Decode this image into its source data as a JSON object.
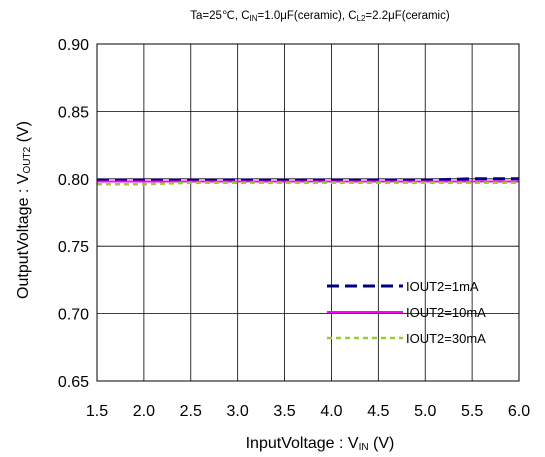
{
  "chart_data": {
    "type": "line",
    "title_parts": [
      {
        "t": "Ta=25℃, C"
      },
      {
        "t": "IN",
        "sub": true
      },
      {
        "t": "=1.0μF(ceramic), C"
      },
      {
        "t": "L2",
        "sub": true
      },
      {
        "t": "=2.2μF(ceramic)"
      }
    ],
    "xlabel_parts": [
      {
        "t": "InputVoltage : V"
      },
      {
        "t": "IN",
        "sub": true
      },
      {
        "t": " (V)"
      }
    ],
    "ylabel_parts": [
      {
        "t": "OutputVoltage : V"
      },
      {
        "t": "OUT2",
        "sub": true
      },
      {
        "t": " (V)"
      }
    ],
    "xlim": [
      1.5,
      6.0
    ],
    "ylim": [
      0.65,
      0.9
    ],
    "xticks": [
      "1.5",
      "2.0",
      "2.5",
      "3.0",
      "3.5",
      "4.0",
      "4.5",
      "5.0",
      "5.5",
      "6.0"
    ],
    "yticks": [
      "0.65",
      "0.70",
      "0.75",
      "0.80",
      "0.85",
      "0.90"
    ],
    "grid": true,
    "legend_position": "bottom-right",
    "series": [
      {
        "name": "IOUT2=1mA",
        "color": "#000080",
        "dash": "dashed",
        "x": [
          1.5,
          2.0,
          2.5,
          3.0,
          3.5,
          4.0,
          4.5,
          5.0,
          5.5,
          6.0
        ],
        "y": [
          0.799,
          0.799,
          0.799,
          0.799,
          0.799,
          0.799,
          0.799,
          0.799,
          0.8,
          0.8
        ]
      },
      {
        "name": "IOUT2=10mA",
        "color": "#ff00ff",
        "dash": "solid",
        "x": [
          1.5,
          2.0,
          2.5,
          3.0,
          3.5,
          4.0,
          4.5,
          5.0,
          5.5,
          6.0
        ],
        "y": [
          0.798,
          0.798,
          0.798,
          0.798,
          0.798,
          0.798,
          0.798,
          0.798,
          0.798,
          0.798
        ]
      },
      {
        "name": "IOUT2=30mA",
        "color": "#9acd32",
        "dash": "dotted",
        "x": [
          1.5,
          2.0,
          2.5,
          3.0,
          3.5,
          4.0,
          4.5,
          5.0,
          5.5,
          6.0
        ],
        "y": [
          0.796,
          0.796,
          0.797,
          0.797,
          0.797,
          0.797,
          0.797,
          0.797,
          0.797,
          0.797
        ]
      }
    ]
  }
}
